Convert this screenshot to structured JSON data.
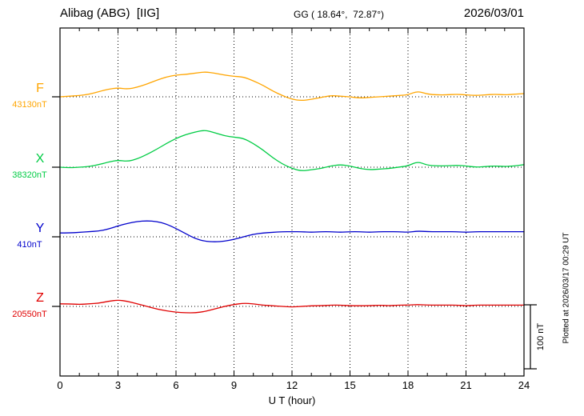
{
  "header": {
    "station": "Alibag (ABG)  [IIG]",
    "coords": "GG ( 18.64°,  72.87°)",
    "date": "2026/03/01"
  },
  "plot_note": "Plotted at 2026/03/17 00:29 UT",
  "x_axis": {
    "label": "U T (hour)",
    "ticks": [
      0,
      3,
      6,
      9,
      12,
      15,
      18,
      21,
      24
    ],
    "minor_step_hours": 1,
    "range": [
      0,
      24
    ]
  },
  "scale_bar": {
    "label": "100 nT",
    "nT": 100
  },
  "chart_data": {
    "type": "line",
    "title": "Alibag (ABG) [IIG] magnetogram for 2026/03/01",
    "xlabel": "U T (hour)",
    "x_range_hours": [
      0,
      24
    ],
    "x_step_hours": 0.5,
    "grid": "vertical dotted every 3 hours; dotted horizontal baseline per component",
    "legend_position": "left-margin component labels",
    "series": [
      {
        "name": "F",
        "color": "#ffa500",
        "baseline_value_label": "43130nT",
        "baseline_nT": 43130,
        "offsets_nT": [
          0,
          1,
          2,
          4,
          8,
          12,
          14,
          12,
          15,
          20,
          26,
          31,
          34,
          35,
          37,
          39,
          37,
          34,
          32,
          31,
          25,
          18,
          9,
          2,
          -4,
          -6,
          -4,
          -1,
          2,
          1,
          0,
          -2,
          -1,
          0,
          1,
          2,
          3,
          9,
          4,
          3,
          3,
          4,
          3,
          2,
          3,
          4,
          3,
          4,
          5
        ]
      },
      {
        "name": "X",
        "color": "#00cc44",
        "baseline_value_label": "38320nT",
        "baseline_nT": 38320,
        "offsets_nT": [
          0,
          -1,
          0,
          1,
          4,
          8,
          11,
          9,
          13,
          20,
          28,
          37,
          45,
          51,
          55,
          58,
          54,
          49,
          47,
          45,
          37,
          27,
          15,
          5,
          -2,
          -6,
          -4,
          -2,
          2,
          4,
          2,
          -2,
          -4,
          -3,
          -2,
          0,
          2,
          9,
          3,
          2,
          2,
          3,
          2,
          0,
          1,
          2,
          1,
          2,
          4
        ]
      },
      {
        "name": "Y",
        "color": "#0000cc",
        "baseline_value_label": "410nT",
        "baseline_nT": 410,
        "offsets_nT": [
          6,
          6,
          7,
          8,
          9,
          12,
          17,
          21,
          24,
          25,
          24,
          20,
          13,
          5,
          -3,
          -7,
          -8,
          -7,
          -4,
          0,
          4,
          6,
          7,
          8,
          8,
          8,
          7,
          8,
          8,
          7,
          8,
          8,
          7,
          8,
          8,
          8,
          7,
          9,
          8,
          8,
          8,
          8,
          7,
          8,
          8,
          8,
          8,
          8,
          8
        ]
      },
      {
        "name": "Z",
        "color": "#e00000",
        "baseline_value_label": "20550nT",
        "baseline_nT": 20550,
        "offsets_nT": [
          4,
          4,
          3,
          4,
          5,
          8,
          10,
          8,
          4,
          0,
          -4,
          -7,
          -9,
          -10,
          -10,
          -8,
          -4,
          0,
          3,
          5,
          4,
          2,
          1,
          0,
          -1,
          0,
          1,
          1,
          2,
          2,
          1,
          1,
          1,
          2,
          1,
          2,
          2,
          3,
          2,
          2,
          2,
          2,
          1,
          2,
          2,
          2,
          2,
          2,
          2
        ]
      }
    ]
  }
}
